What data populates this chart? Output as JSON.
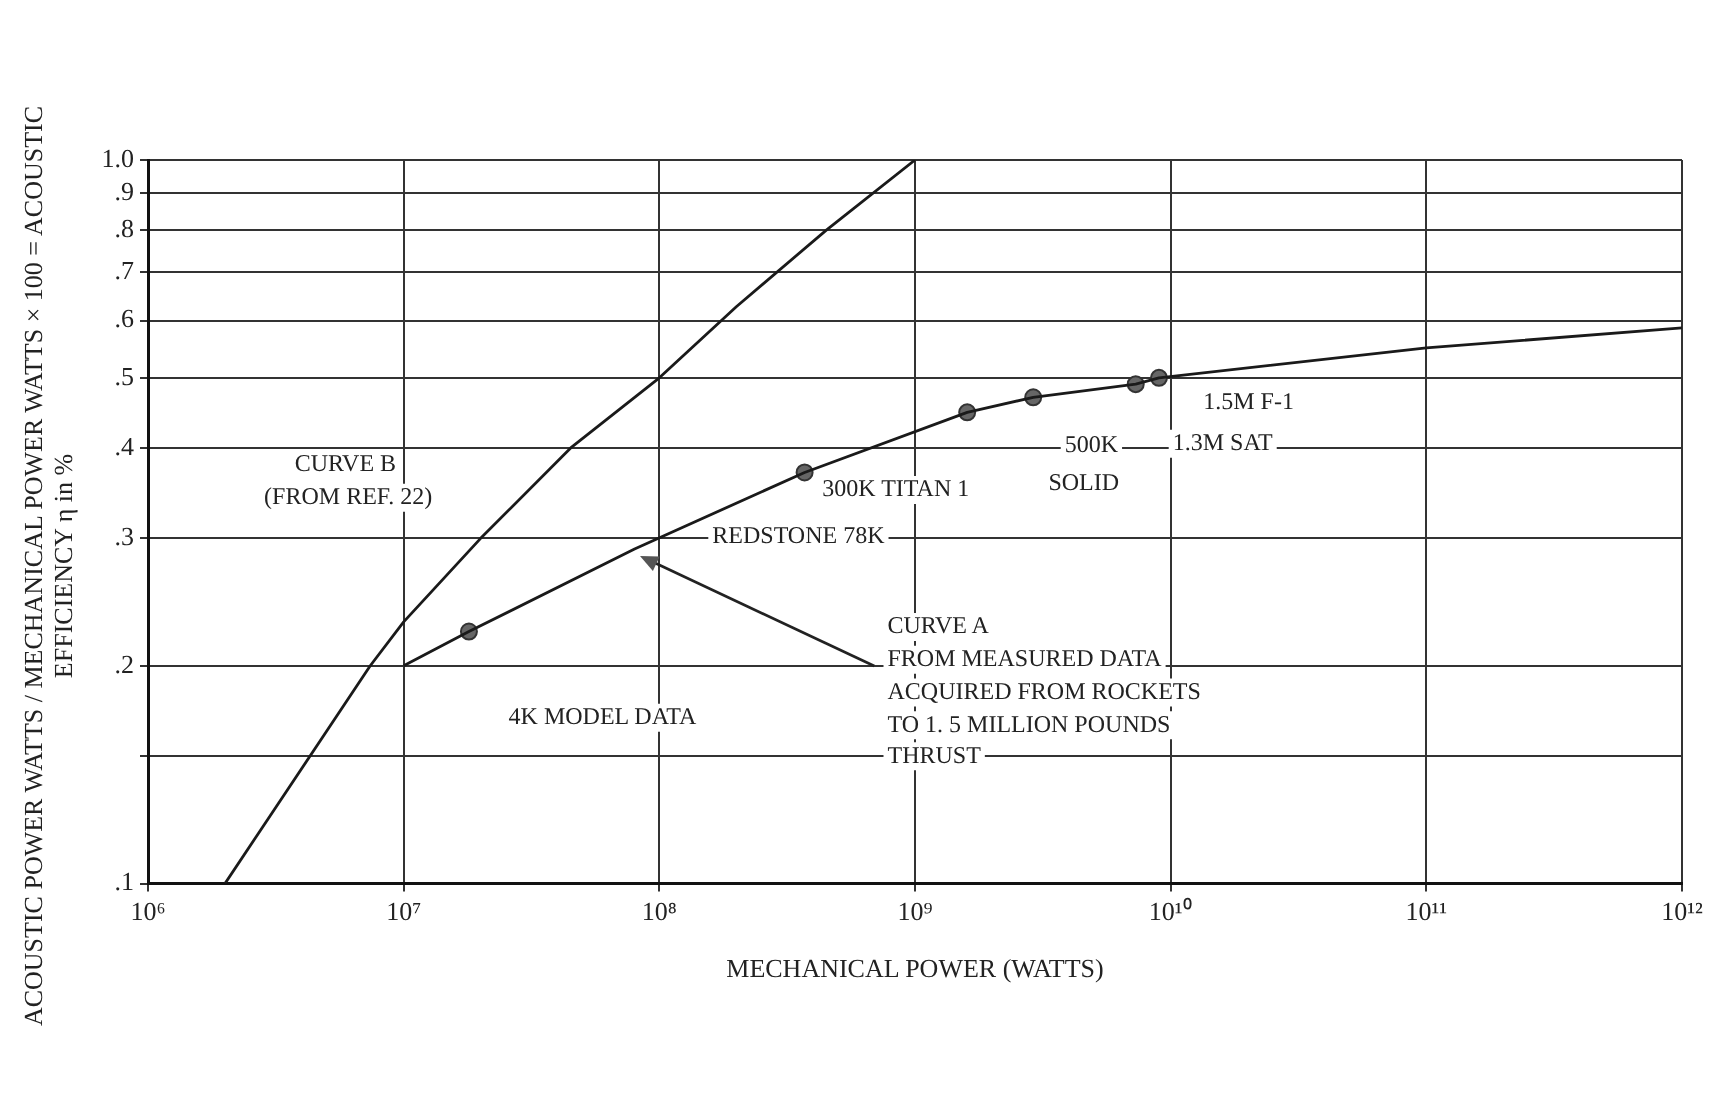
{
  "chart_data": {
    "type": "line",
    "xlabel": "MECHANICAL POWER (WATTS)",
    "ylabel": "ACOUSTIC POWER WATTS / MECHANICAL POWER WATTS × 100 = ACOUSTIC EFFICIENCY η in %",
    "log": "xy",
    "grid": true,
    "legend": false,
    "marker": "none",
    "line_style": "solid",
    "xlim": [
      1000000,
      1000000000000
    ],
    "ylim": [
      0.1,
      1.0
    ],
    "xticks": [
      {
        "value": 1000000,
        "label": "10⁶"
      },
      {
        "value": 10000000,
        "label": "10⁷"
      },
      {
        "value": 100000000,
        "label": "10⁸"
      },
      {
        "value": 1000000000,
        "label": "10⁹"
      },
      {
        "value": 10000000000,
        "label": "10¹⁰"
      },
      {
        "value": 100000000000,
        "label": "10¹¹"
      },
      {
        "value": 1000000000000,
        "label": "10¹²"
      }
    ],
    "yticks": [
      {
        "value": 0.1,
        "label": ".1"
      },
      {
        "value": 0.15,
        "label": null
      },
      {
        "value": 0.2,
        "label": ".2"
      },
      {
        "value": 0.3,
        "label": ".3"
      },
      {
        "value": 0.4,
        "label": ".4"
      },
      {
        "value": 0.5,
        "label": ".5"
      },
      {
        "value": 0.6,
        "label": ".6"
      },
      {
        "value": 0.7,
        "label": ".7"
      },
      {
        "value": 0.8,
        "label": ".8"
      },
      {
        "value": 0.9,
        "label": ".9"
      },
      {
        "value": 1.0,
        "label": "1.0"
      }
    ],
    "series": [
      {
        "color": "#1a1a1a",
        "x": [
          10000000,
          18000000,
          80000000,
          370000000,
          1600000000,
          2900000000,
          7300000000,
          9000000000,
          100000000000,
          1000000000000
        ],
        "values": [
          0.2,
          0.223,
          0.29,
          0.37,
          0.448,
          0.47,
          0.49,
          0.5,
          0.55,
          0.586
        ]
      },
      {
        "color": "#1a1a1a",
        "x": [
          2000000,
          7400000,
          10000000,
          20000000,
          45000000,
          100000000,
          200000000,
          450000000,
          1000000000
        ],
        "values": [
          0.1,
          0.2,
          0.23,
          0.3,
          0.4,
          0.5,
          0.627,
          0.8,
          1.0
        ]
      },
      {
        "type": "scatter",
        "marker": "circle",
        "color": "#666666",
        "x": [
          18000000,
          370000000,
          1600000000,
          2900000000,
          7300000000,
          9000000000
        ],
        "values": [
          0.223,
          0.37,
          0.448,
          0.47,
          0.49,
          0.5
        ]
      }
    ],
    "annotations": [
      "CURVE B",
      "(FROM REF. 22)",
      "4K MODEL DATA",
      "REDSTONE 78K",
      "300K TITAN 1",
      "500K",
      "SOLID",
      "1.5M F-1",
      "1.3M SAT",
      "CURVE A",
      "FROM MEASURED DATA",
      "ACQUIRED FROM ROCKETS",
      "TO 1. 5 MILLION POUNDS",
      "THRUST"
    ]
  }
}
